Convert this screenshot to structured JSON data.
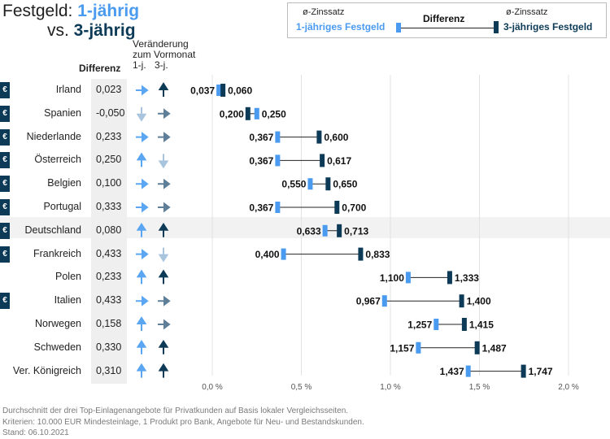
{
  "title": {
    "line1_prefix": "Festgeld: ",
    "line1_highlight": "1-jährig",
    "line2_prefix": "vs. ",
    "line2_highlight": "3-jährig"
  },
  "legend": {
    "avg_label_left": "ø-Zinssatz",
    "avg_label_right": "ø-Zinssatz",
    "series1": "1-jähriges Festgeld",
    "series3": "3-jähriges Festgeld",
    "middle": "Differenz"
  },
  "headers": {
    "differenz": "Differenz",
    "veraenderung": "Veränderung",
    "zum_vormonat": "zum Vormonat",
    "col_1j": "1-j.",
    "col_3j": "3-j."
  },
  "colors": {
    "one_year": "#4a9aef",
    "three_year": "#0d3b57",
    "arrow_light": "#5aa6f2",
    "arrow_dark": "#0d3b57",
    "arrow_slate": "#5f7f99",
    "arrow_pale": "#a9c4dd",
    "highlight_row": "#f2f2f2"
  },
  "chart_data": {
    "type": "dumbbell",
    "x_unit": "%",
    "xlim": [
      0,
      2.2
    ],
    "xticks": [
      0,
      0.5,
      1.0,
      1.5,
      2.0
    ],
    "xtick_labels": [
      "0,0 %",
      "0,5 %",
      "1,0 %",
      "1,5 %",
      "2,0 %"
    ],
    "grid": true,
    "series": [
      {
        "name": "1-jähriges Festgeld",
        "color": "#4a9aef"
      },
      {
        "name": "3-jähriges Festgeld",
        "color": "#0d3b57"
      }
    ],
    "rows": [
      {
        "country": "Irland",
        "euro": true,
        "diff": "0,023",
        "one": 0.037,
        "three": 0.06,
        "one_label": "0,037",
        "three_label": "0,060",
        "arrow_1j": "right",
        "arrow_3j": "up",
        "highlight": false
      },
      {
        "country": "Spanien",
        "euro": true,
        "diff": "-0,050",
        "one": 0.25,
        "three": 0.2,
        "one_label": "0,250",
        "three_label": "0,200",
        "arrow_1j": "down",
        "arrow_3j": "right",
        "highlight": false
      },
      {
        "country": "Niederlande",
        "euro": true,
        "diff": "0,233",
        "one": 0.367,
        "three": 0.6,
        "one_label": "0,367",
        "three_label": "0,600",
        "arrow_1j": "right",
        "arrow_3j": "right",
        "highlight": false
      },
      {
        "country": "Österreich",
        "euro": true,
        "diff": "0,250",
        "one": 0.367,
        "three": 0.617,
        "one_label": "0,367",
        "three_label": "0,617",
        "arrow_1j": "up",
        "arrow_3j": "down",
        "highlight": false
      },
      {
        "country": "Belgien",
        "euro": true,
        "diff": "0,100",
        "one": 0.55,
        "three": 0.65,
        "one_label": "0,550",
        "three_label": "0,650",
        "arrow_1j": "right",
        "arrow_3j": "right",
        "highlight": false
      },
      {
        "country": "Portugal",
        "euro": true,
        "diff": "0,333",
        "one": 0.367,
        "three": 0.7,
        "one_label": "0,367",
        "three_label": "0,700",
        "arrow_1j": "right",
        "arrow_3j": "right",
        "highlight": false
      },
      {
        "country": "Deutschland",
        "euro": true,
        "diff": "0,080",
        "one": 0.633,
        "three": 0.713,
        "one_label": "0,633",
        "three_label": "0,713",
        "arrow_1j": "up",
        "arrow_3j": "up",
        "highlight": true
      },
      {
        "country": "Frankreich",
        "euro": true,
        "diff": "0,433",
        "one": 0.4,
        "three": 0.833,
        "one_label": "0,400",
        "three_label": "0,833",
        "arrow_1j": "right",
        "arrow_3j": "down",
        "highlight": false
      },
      {
        "country": "Polen",
        "euro": false,
        "diff": "0,233",
        "one": 1.1,
        "three": 1.333,
        "one_label": "1,100",
        "three_label": "1,333",
        "arrow_1j": "up",
        "arrow_3j": "up",
        "highlight": false
      },
      {
        "country": "Italien",
        "euro": true,
        "diff": "0,433",
        "one": 0.967,
        "three": 1.4,
        "one_label": "0,967",
        "three_label": "1,400",
        "arrow_1j": "right",
        "arrow_3j": "right",
        "highlight": false
      },
      {
        "country": "Norwegen",
        "euro": false,
        "diff": "0,158",
        "one": 1.257,
        "three": 1.415,
        "one_label": "1,257",
        "three_label": "1,415",
        "arrow_1j": "up",
        "arrow_3j": "right",
        "highlight": false
      },
      {
        "country": "Schweden",
        "euro": false,
        "diff": "0,330",
        "one": 1.157,
        "three": 1.487,
        "one_label": "1,157",
        "three_label": "1,487",
        "arrow_1j": "up",
        "arrow_3j": "up",
        "highlight": false
      },
      {
        "country": "Ver. Königreich",
        "euro": false,
        "diff": "0,310",
        "one": 1.437,
        "three": 1.747,
        "one_label": "1,437",
        "three_label": "1,747",
        "arrow_1j": "up",
        "arrow_3j": "up",
        "highlight": false
      }
    ]
  },
  "flag_symbol": "€",
  "footer": {
    "line1": "Durchschnitt der drei Top-Einlagenangebote für Privatkunden auf Basis lokaler Vergleichsseiten.",
    "line2": "Kriterien: 10.000 EUR Mindesteinlage, 1 Produkt pro Bank, Angebote für Neu- und Bestandskunden.",
    "line3": "Stand: 06.10.2021"
  }
}
